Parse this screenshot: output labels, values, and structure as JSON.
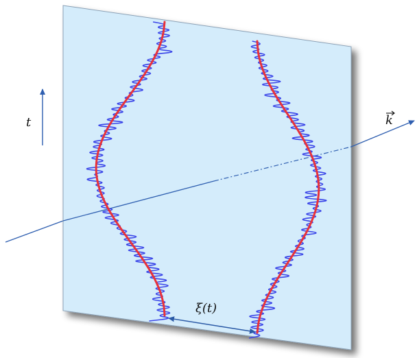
{
  "labels": {
    "time": "t",
    "wavevector": "k",
    "separation": "ξ(t)"
  },
  "colors": {
    "plane": "#d4ecfb",
    "plane_edge": "#5d6a78",
    "noisy_trace": "#3a45e8",
    "mean_trace": "#e8323a",
    "axis": "#2f5fb0",
    "arrow": "#2b5aa6"
  },
  "icons": {
    "k_vector_mark": "arrow-over-letter"
  }
}
